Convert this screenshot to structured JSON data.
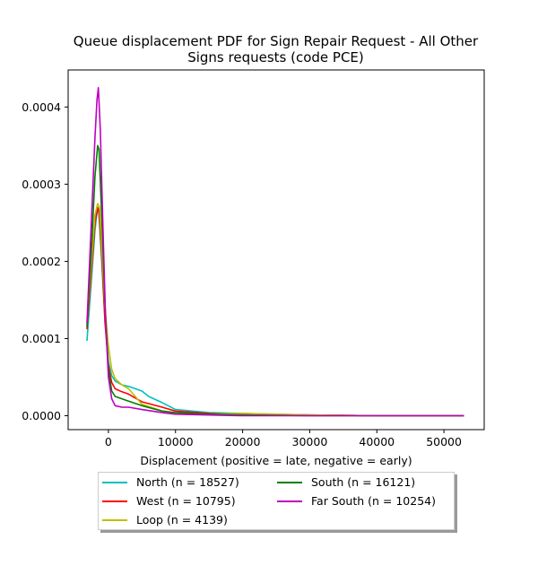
{
  "chart_data": {
    "type": "line",
    "title_lines": [
      "Queue displacement PDF for Sign Repair Request - All Other",
      "Signs  requests (code PCE)"
    ],
    "xlabel": "Displacement (positive = late, negative = early)",
    "ylabel": "",
    "xlim": [
      -6000,
      56000
    ],
    "ylim": [
      -1.8e-05,
      0.000448
    ],
    "xticks": [
      0,
      10000,
      20000,
      30000,
      40000,
      50000
    ],
    "yticks": [
      0.0,
      0.0001,
      0.0002,
      0.0003,
      0.0004
    ],
    "ytick_labels": [
      "0.0000",
      "0.0001",
      "0.0002",
      "0.0003",
      "0.0004"
    ],
    "legend_position": "below plot",
    "series": [
      {
        "name": "North (n = 18527)",
        "color": "#00bfbf",
        "x": [
          -3200,
          -2500,
          -2000,
          -1600,
          -1400,
          -1000,
          -500,
          0,
          500,
          1000,
          2000,
          3000,
          5000,
          6000,
          8000,
          10000,
          15000,
          20000,
          30000,
          40000,
          53000
        ],
        "y": [
          9.7e-05,
          0.00018,
          0.00024,
          0.00027,
          0.00026,
          0.0002,
          0.00012,
          7e-05,
          5.2e-05,
          4.5e-05,
          4e-05,
          3.8e-05,
          3.2e-05,
          2.5e-05,
          1.7e-05,
          8e-06,
          4e-06,
          3e-06,
          1e-06,
          0.0,
          0.0
        ]
      },
      {
        "name": "West (n = 10795)",
        "color": "#ff0000",
        "x": [
          -3200,
          -2500,
          -2000,
          -1600,
          -1400,
          -1000,
          -500,
          0,
          500,
          1000,
          2000,
          3000,
          5000,
          8000,
          10000,
          15000,
          20000,
          30000,
          40000,
          53000
        ],
        "y": [
          0.000112,
          0.00019,
          0.00025,
          0.00027,
          0.000265,
          0.00021,
          0.00012,
          6.5e-05,
          4.3e-05,
          3.5e-05,
          3.1e-05,
          2.8e-05,
          1.8e-05,
          1.1e-05,
          6e-06,
          3e-06,
          2e-06,
          1e-06,
          0.0,
          0.0
        ]
      },
      {
        "name": "Loop (n = 4139)",
        "color": "#bfbf00",
        "x": [
          -3200,
          -2500,
          -2000,
          -1600,
          -1300,
          -1000,
          -500,
          0,
          500,
          1000,
          2000,
          3000,
          5000,
          8000,
          10000,
          15000,
          20000,
          30000,
          40000,
          53000
        ],
        "y": [
          0.000118,
          0.0002,
          0.00026,
          0.000275,
          0.00027,
          0.00022,
          0.00014,
          9e-05,
          6e-05,
          4.8e-05,
          4e-05,
          3.5e-05,
          1.5e-05,
          6e-06,
          3e-06,
          2e-06,
          3e-06,
          1e-06,
          0.0,
          0.0
        ]
      },
      {
        "name": "South (n = 16121)",
        "color": "#008000",
        "x": [
          -3200,
          -2500,
          -2000,
          -1600,
          -1400,
          -1000,
          -500,
          0,
          500,
          1000,
          2000,
          3000,
          5000,
          8000,
          10000,
          15000,
          20000,
          30000,
          40000,
          53000
        ],
        "y": [
          0.000115,
          0.00022,
          0.00031,
          0.00035,
          0.000345,
          0.00026,
          0.00014,
          6e-05,
          3.2e-05,
          2.5e-05,
          2.2e-05,
          1.9e-05,
          1.3e-05,
          6e-06,
          4e-06,
          2e-06,
          1e-06,
          0.0,
          0.0,
          0.0
        ]
      },
      {
        "name": "Far South (n = 10254)",
        "color": "#bf00bf",
        "x": [
          -3200,
          -2500,
          -2000,
          -1700,
          -1500,
          -1200,
          -800,
          -400,
          0,
          500,
          1000,
          2000,
          3000,
          5000,
          8000,
          10000,
          15000,
          20000,
          30000,
          40000,
          53000
        ],
        "y": [
          0.00012,
          0.00026,
          0.00036,
          0.00041,
          0.000425,
          0.00037,
          0.00024,
          0.00012,
          5e-05,
          2.2e-05,
          1.3e-05,
          1.1e-05,
          1.1e-05,
          8e-06,
          4e-06,
          2e-06,
          1e-06,
          0.0,
          0.0,
          0.0,
          0.0
        ]
      }
    ]
  }
}
